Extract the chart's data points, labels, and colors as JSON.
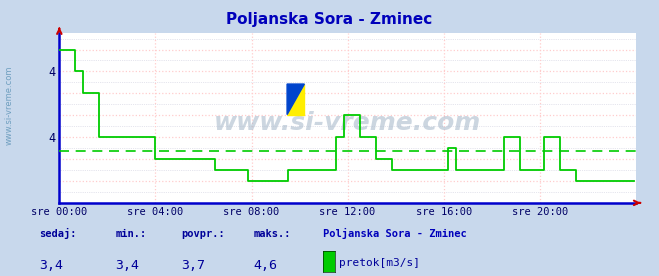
{
  "title": "Poljanska Sora - Zminec",
  "bg_color": "#c8d8ec",
  "plot_bg_color": "#ffffff",
  "plot_border_color": "#d0dce8",
  "line_color": "#00cc00",
  "avg_color": "#00cc00",
  "avg_value": 3.67,
  "y_min": 3.2,
  "y_max": 4.75,
  "y_ticks": [
    3.8,
    4.4
  ],
  "y_tick_labels": [
    "4",
    "4"
  ],
  "x_labels": [
    "sre 00:00",
    "sre 04:00",
    "sre 08:00",
    "sre 12:00",
    "sre 16:00",
    "sre 20:00"
  ],
  "x_tick_positions": [
    0,
    48,
    96,
    144,
    192,
    240
  ],
  "total_points": 288,
  "watermark": "www.si-vreme.com",
  "sedaj": "3,4",
  "min_val": "3,4",
  "povpr": "3,7",
  "maks": "4,6",
  "station": "Poljanska Sora - Zminec",
  "legend_label": "pretok[m3/s]",
  "grid_color": "#ffcccc",
  "dot_grid_color": "#ccccdd",
  "spine_color": "#0000cc",
  "arrow_color": "#cc0000",
  "text_color": "#000099",
  "title_color": "#0000bb",
  "side_text_color": "#6699bb",
  "flow_data": [
    4.6,
    4.6,
    4.6,
    4.6,
    4.6,
    4.6,
    4.6,
    4.6,
    4.4,
    4.4,
    4.4,
    4.4,
    4.2,
    4.2,
    4.2,
    4.2,
    4.2,
    4.2,
    4.2,
    4.2,
    3.8,
    3.8,
    3.8,
    3.8,
    3.8,
    3.8,
    3.8,
    3.8,
    3.8,
    3.8,
    3.8,
    3.8,
    3.8,
    3.8,
    3.8,
    3.8,
    3.8,
    3.8,
    3.8,
    3.8,
    3.8,
    3.8,
    3.8,
    3.8,
    3.8,
    3.8,
    3.8,
    3.8,
    3.6,
    3.6,
    3.6,
    3.6,
    3.6,
    3.6,
    3.6,
    3.6,
    3.6,
    3.6,
    3.6,
    3.6,
    3.6,
    3.6,
    3.6,
    3.6,
    3.6,
    3.6,
    3.6,
    3.6,
    3.6,
    3.6,
    3.6,
    3.6,
    3.6,
    3.6,
    3.6,
    3.6,
    3.6,
    3.6,
    3.5,
    3.5,
    3.5,
    3.5,
    3.5,
    3.5,
    3.5,
    3.5,
    3.5,
    3.5,
    3.5,
    3.5,
    3.5,
    3.5,
    3.5,
    3.5,
    3.4,
    3.4,
    3.4,
    3.4,
    3.4,
    3.4,
    3.4,
    3.4,
    3.4,
    3.4,
    3.4,
    3.4,
    3.4,
    3.4,
    3.4,
    3.4,
    3.4,
    3.4,
    3.4,
    3.4,
    3.5,
    3.5,
    3.5,
    3.5,
    3.5,
    3.5,
    3.5,
    3.5,
    3.5,
    3.5,
    3.5,
    3.5,
    3.5,
    3.5,
    3.5,
    3.5,
    3.5,
    3.5,
    3.5,
    3.5,
    3.5,
    3.5,
    3.5,
    3.5,
    3.8,
    3.8,
    3.8,
    3.8,
    4.0,
    4.0,
    4.0,
    4.0,
    4.0,
    4.0,
    4.0,
    4.0,
    3.8,
    3.8,
    3.8,
    3.8,
    3.8,
    3.8,
    3.8,
    3.8,
    3.6,
    3.6,
    3.6,
    3.6,
    3.6,
    3.6,
    3.6,
    3.6,
    3.5,
    3.5,
    3.5,
    3.5,
    3.5,
    3.5,
    3.5,
    3.5,
    3.5,
    3.5,
    3.5,
    3.5,
    3.5,
    3.5,
    3.5,
    3.5,
    3.5,
    3.5,
    3.5,
    3.5,
    3.5,
    3.5,
    3.5,
    3.5,
    3.5,
    3.5,
    3.5,
    3.5,
    3.7,
    3.7,
    3.7,
    3.7,
    3.5,
    3.5,
    3.5,
    3.5,
    3.5,
    3.5,
    3.5,
    3.5,
    3.5,
    3.5,
    3.5,
    3.5,
    3.5,
    3.5,
    3.5,
    3.5,
    3.5,
    3.5,
    3.5,
    3.5,
    3.5,
    3.5,
    3.5,
    3.5,
    3.8,
    3.8,
    3.8,
    3.8,
    3.8,
    3.8,
    3.8,
    3.8,
    3.5,
    3.5,
    3.5,
    3.5,
    3.5,
    3.5,
    3.5,
    3.5,
    3.5,
    3.5,
    3.5,
    3.5,
    3.8,
    3.8,
    3.8,
    3.8,
    3.8,
    3.8,
    3.8,
    3.8,
    3.5,
    3.5,
    3.5,
    3.5,
    3.5,
    3.5,
    3.5,
    3.5,
    3.4,
    3.4,
    3.4,
    3.4
  ]
}
